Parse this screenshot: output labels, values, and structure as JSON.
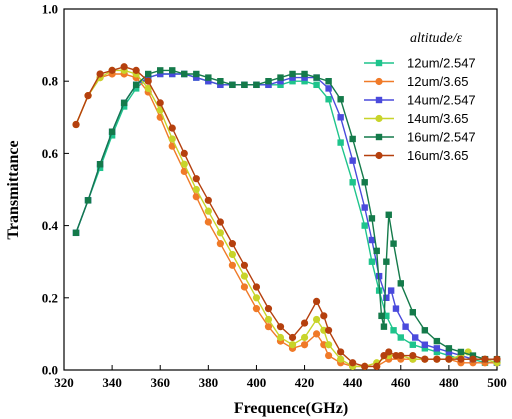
{
  "chart_data": {
    "type": "line",
    "xlabel": "Frequence(GHz)",
    "ylabel": "Transmittance",
    "xlim": [
      320,
      500
    ],
    "ylim": [
      0,
      1.0
    ],
    "x_ticks": [
      "320",
      "340",
      "360",
      "380",
      "400",
      "420",
      "440",
      "460",
      "480",
      "500"
    ],
    "y_ticks": [
      "0.0",
      "0.2",
      "0.4",
      "0.6",
      "0.8",
      "1.0"
    ],
    "legend_title": "altitude/ε",
    "legend_placement": "top-right",
    "series": [
      {
        "name": "12um/2.547",
        "color": "#1ec48c",
        "marker": "square",
        "points": [
          [
            325,
            0.38
          ],
          [
            330,
            0.47
          ],
          [
            335,
            0.56
          ],
          [
            340,
            0.65
          ],
          [
            345,
            0.73
          ],
          [
            350,
            0.78
          ],
          [
            355,
            0.81
          ],
          [
            360,
            0.82
          ],
          [
            365,
            0.82
          ],
          [
            370,
            0.82
          ],
          [
            375,
            0.81
          ],
          [
            380,
            0.8
          ],
          [
            385,
            0.79
          ],
          [
            390,
            0.79
          ],
          [
            395,
            0.79
          ],
          [
            400,
            0.79
          ],
          [
            405,
            0.79
          ],
          [
            410,
            0.79
          ],
          [
            415,
            0.8
          ],
          [
            420,
            0.8
          ],
          [
            425,
            0.79
          ],
          [
            430,
            0.75
          ],
          [
            435,
            0.63
          ],
          [
            440,
            0.52
          ],
          [
            445,
            0.4
          ],
          [
            448,
            0.3
          ],
          [
            451,
            0.22
          ],
          [
            454,
            0.15
          ],
          [
            457,
            0.11
          ],
          [
            460,
            0.09
          ],
          [
            465,
            0.07
          ],
          [
            470,
            0.06
          ],
          [
            475,
            0.05
          ],
          [
            480,
            0.04
          ],
          [
            485,
            0.03
          ],
          [
            490,
            0.03
          ],
          [
            495,
            0.02
          ],
          [
            500,
            0.02
          ]
        ]
      },
      {
        "name": "12um/3.65",
        "color": "#f07a28",
        "marker": "circle",
        "points": [
          [
            325,
            0.68
          ],
          [
            330,
            0.76
          ],
          [
            335,
            0.81
          ],
          [
            340,
            0.82
          ],
          [
            345,
            0.82
          ],
          [
            350,
            0.81
          ],
          [
            355,
            0.77
          ],
          [
            360,
            0.7
          ],
          [
            365,
            0.62
          ],
          [
            370,
            0.55
          ],
          [
            375,
            0.48
          ],
          [
            380,
            0.41
          ],
          [
            385,
            0.35
          ],
          [
            390,
            0.29
          ],
          [
            395,
            0.23
          ],
          [
            400,
            0.17
          ],
          [
            405,
            0.12
          ],
          [
            410,
            0.08
          ],
          [
            415,
            0.06
          ],
          [
            420,
            0.07
          ],
          [
            425,
            0.1
          ],
          [
            428,
            0.07
          ],
          [
            430,
            0.04
          ],
          [
            435,
            0.02
          ],
          [
            440,
            0.01
          ],
          [
            445,
            0.01
          ],
          [
            450,
            0.01
          ],
          [
            455,
            0.03
          ],
          [
            460,
            0.03
          ],
          [
            465,
            0.03
          ],
          [
            470,
            0.03
          ],
          [
            475,
            0.03
          ],
          [
            480,
            0.03
          ],
          [
            485,
            0.02
          ],
          [
            490,
            0.02
          ],
          [
            495,
            0.02
          ],
          [
            500,
            0.02
          ]
        ]
      },
      {
        "name": "14um/2.547",
        "color": "#4a4adc",
        "marker": "square",
        "points": [
          [
            325,
            0.38
          ],
          [
            330,
            0.47
          ],
          [
            335,
            0.57
          ],
          [
            340,
            0.66
          ],
          [
            345,
            0.74
          ],
          [
            350,
            0.79
          ],
          [
            355,
            0.81
          ],
          [
            360,
            0.82
          ],
          [
            365,
            0.82
          ],
          [
            370,
            0.82
          ],
          [
            375,
            0.81
          ],
          [
            380,
            0.8
          ],
          [
            385,
            0.79
          ],
          [
            390,
            0.79
          ],
          [
            395,
            0.79
          ],
          [
            400,
            0.79
          ],
          [
            405,
            0.79
          ],
          [
            410,
            0.8
          ],
          [
            415,
            0.81
          ],
          [
            420,
            0.81
          ],
          [
            425,
            0.81
          ],
          [
            430,
            0.78
          ],
          [
            435,
            0.7
          ],
          [
            440,
            0.58
          ],
          [
            445,
            0.45
          ],
          [
            448,
            0.36
          ],
          [
            451,
            0.26
          ],
          [
            454,
            0.2
          ],
          [
            456,
            0.22
          ],
          [
            458,
            0.17
          ],
          [
            462,
            0.12
          ],
          [
            466,
            0.09
          ],
          [
            470,
            0.07
          ],
          [
            475,
            0.06
          ],
          [
            480,
            0.05
          ],
          [
            485,
            0.04
          ],
          [
            490,
            0.03
          ],
          [
            495,
            0.03
          ],
          [
            500,
            0.02
          ]
        ]
      },
      {
        "name": "14um/3.65",
        "color": "#c8d42a",
        "marker": "circle",
        "points": [
          [
            325,
            0.68
          ],
          [
            330,
            0.76
          ],
          [
            335,
            0.81
          ],
          [
            340,
            0.83
          ],
          [
            345,
            0.83
          ],
          [
            350,
            0.82
          ],
          [
            355,
            0.78
          ],
          [
            360,
            0.72
          ],
          [
            365,
            0.64
          ],
          [
            370,
            0.57
          ],
          [
            375,
            0.5
          ],
          [
            380,
            0.44
          ],
          [
            385,
            0.38
          ],
          [
            390,
            0.32
          ],
          [
            395,
            0.26
          ],
          [
            400,
            0.2
          ],
          [
            405,
            0.14
          ],
          [
            410,
            0.09
          ],
          [
            415,
            0.07
          ],
          [
            420,
            0.09
          ],
          [
            425,
            0.14
          ],
          [
            428,
            0.11
          ],
          [
            430,
            0.07
          ],
          [
            435,
            0.03
          ],
          [
            440,
            0.01
          ],
          [
            445,
            0.01
          ],
          [
            450,
            0.02
          ],
          [
            455,
            0.04
          ],
          [
            460,
            0.04
          ],
          [
            465,
            0.03
          ],
          [
            470,
            0.03
          ],
          [
            475,
            0.03
          ],
          [
            480,
            0.03
          ],
          [
            485,
            0.04
          ],
          [
            488,
            0.05
          ],
          [
            490,
            0.03
          ],
          [
            495,
            0.03
          ],
          [
            500,
            0.02
          ]
        ]
      },
      {
        "name": "16um/2.547",
        "color": "#147a4a",
        "marker": "square",
        "points": [
          [
            325,
            0.38
          ],
          [
            330,
            0.47
          ],
          [
            335,
            0.57
          ],
          [
            340,
            0.66
          ],
          [
            345,
            0.74
          ],
          [
            350,
            0.79
          ],
          [
            355,
            0.82
          ],
          [
            360,
            0.83
          ],
          [
            365,
            0.83
          ],
          [
            370,
            0.82
          ],
          [
            375,
            0.82
          ],
          [
            380,
            0.81
          ],
          [
            385,
            0.8
          ],
          [
            390,
            0.79
          ],
          [
            395,
            0.79
          ],
          [
            400,
            0.79
          ],
          [
            405,
            0.8
          ],
          [
            410,
            0.81
          ],
          [
            415,
            0.82
          ],
          [
            420,
            0.82
          ],
          [
            425,
            0.81
          ],
          [
            430,
            0.8
          ],
          [
            435,
            0.75
          ],
          [
            440,
            0.64
          ],
          [
            445,
            0.52
          ],
          [
            448,
            0.42
          ],
          [
            450,
            0.33
          ],
          [
            452,
            0.15
          ],
          [
            453,
            0.12
          ],
          [
            454,
            0.3
          ],
          [
            455,
            0.43
          ],
          [
            457,
            0.35
          ],
          [
            460,
            0.24
          ],
          [
            465,
            0.16
          ],
          [
            470,
            0.11
          ],
          [
            475,
            0.08
          ],
          [
            480,
            0.06
          ],
          [
            485,
            0.05
          ],
          [
            490,
            0.04
          ],
          [
            495,
            0.03
          ],
          [
            500,
            0.03
          ]
        ]
      },
      {
        "name": "16um/3.65",
        "color": "#b5400e",
        "marker": "circle",
        "points": [
          [
            325,
            0.68
          ],
          [
            330,
            0.76
          ],
          [
            335,
            0.82
          ],
          [
            340,
            0.83
          ],
          [
            345,
            0.84
          ],
          [
            350,
            0.83
          ],
          [
            355,
            0.8
          ],
          [
            360,
            0.74
          ],
          [
            365,
            0.67
          ],
          [
            370,
            0.6
          ],
          [
            375,
            0.53
          ],
          [
            380,
            0.47
          ],
          [
            385,
            0.41
          ],
          [
            390,
            0.35
          ],
          [
            395,
            0.29
          ],
          [
            400,
            0.23
          ],
          [
            405,
            0.17
          ],
          [
            410,
            0.12
          ],
          [
            415,
            0.09
          ],
          [
            420,
            0.13
          ],
          [
            425,
            0.19
          ],
          [
            428,
            0.15
          ],
          [
            430,
            0.11
          ],
          [
            435,
            0.05
          ],
          [
            440,
            0.02
          ],
          [
            445,
            0.01
          ],
          [
            450,
            0.01
          ],
          [
            453,
            0.04
          ],
          [
            455,
            0.05
          ],
          [
            458,
            0.04
          ],
          [
            460,
            0.04
          ],
          [
            465,
            0.04
          ],
          [
            470,
            0.03
          ],
          [
            475,
            0.03
          ],
          [
            480,
            0.03
          ],
          [
            485,
            0.03
          ],
          [
            490,
            0.03
          ],
          [
            495,
            0.03
          ],
          [
            500,
            0.03
          ]
        ]
      }
    ]
  }
}
